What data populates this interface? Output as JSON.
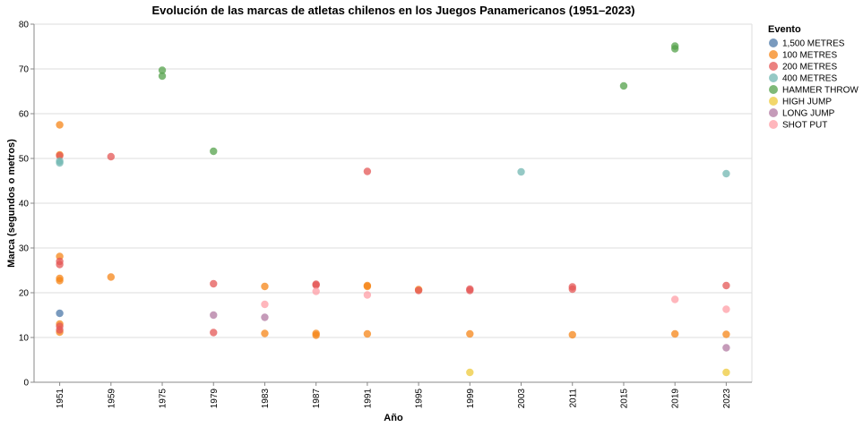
{
  "chart_data": {
    "type": "scatter",
    "title": "Evolución de las marcas de atletas chilenos en los Juegos Panamericanos (1951–2023)",
    "xlabel": "Año",
    "ylabel": "Marca (segundos o metros)",
    "ylim": [
      0,
      80
    ],
    "yticks": [
      0,
      10,
      20,
      30,
      40,
      50,
      60,
      70,
      80
    ],
    "categories": [
      "1951",
      "1959",
      "1975",
      "1979",
      "1983",
      "1987",
      "1991",
      "1995",
      "1999",
      "2003",
      "2011",
      "2015",
      "2019",
      "2023"
    ],
    "grid": true,
    "legend": {
      "title": "Evento",
      "placement": "right"
    },
    "series": [
      {
        "name": "1,500 METRES",
        "color": "#4c78a8",
        "points": [
          [
            "1951",
            15.4
          ]
        ]
      },
      {
        "name": "100 METRES",
        "color": "#f58518",
        "points": [
          [
            "1951",
            57.5
          ],
          [
            "1951",
            50.8
          ],
          [
            "1951",
            28.1
          ],
          [
            "1951",
            23.2
          ],
          [
            "1951",
            22.7
          ],
          [
            "1951",
            13.0
          ],
          [
            "1951",
            11.2
          ],
          [
            "1959",
            23.5
          ],
          [
            "1983",
            21.4
          ],
          [
            "1983",
            10.9
          ],
          [
            "1987",
            10.9
          ],
          [
            "1987",
            10.5
          ],
          [
            "1991",
            21.6
          ],
          [
            "1991",
            21.4
          ],
          [
            "1991",
            10.8
          ],
          [
            "1995",
            20.7
          ],
          [
            "1999",
            10.8
          ],
          [
            "2011",
            10.6
          ],
          [
            "2019",
            10.8
          ],
          [
            "2023",
            10.7
          ]
        ]
      },
      {
        "name": "200 METRES",
        "color": "#e45756",
        "points": [
          [
            "1951",
            50.6
          ],
          [
            "1951",
            27.0
          ],
          [
            "1951",
            26.3
          ],
          [
            "1951",
            12.5
          ],
          [
            "1951",
            11.7
          ],
          [
            "1959",
            50.4
          ],
          [
            "1979",
            22.0
          ],
          [
            "1979",
            11.1
          ],
          [
            "1987",
            21.9
          ],
          [
            "1987",
            21.7
          ],
          [
            "1991",
            47.1
          ],
          [
            "1995",
            20.5
          ],
          [
            "1999",
            20.8
          ],
          [
            "1999",
            20.5
          ],
          [
            "2011",
            21.3
          ],
          [
            "2011",
            20.8
          ],
          [
            "2023",
            21.6
          ]
        ]
      },
      {
        "name": "400 METRES",
        "color": "#72b7b2",
        "points": [
          [
            "1951",
            49.4
          ],
          [
            "1951",
            49.0
          ],
          [
            "2003",
            47.0
          ],
          [
            "2023",
            46.6
          ]
        ]
      },
      {
        "name": "HAMMER THROW",
        "color": "#54a24b",
        "points": [
          [
            "1975",
            69.7
          ],
          [
            "1975",
            68.4
          ],
          [
            "1979",
            51.6
          ],
          [
            "2015",
            66.2
          ],
          [
            "2019",
            75.1
          ],
          [
            "2019",
            74.5
          ]
        ]
      },
      {
        "name": "HIGH JUMP",
        "color": "#eeca3b",
        "points": [
          [
            "1999",
            2.2
          ],
          [
            "2023",
            2.2
          ]
        ]
      },
      {
        "name": "LONG JUMP",
        "color": "#b279a2",
        "points": [
          [
            "1979",
            15.0
          ],
          [
            "1983",
            14.5
          ],
          [
            "2023",
            7.7
          ]
        ]
      },
      {
        "name": "SHOT PUT",
        "color": "#ff9da6",
        "points": [
          [
            "1983",
            17.4
          ],
          [
            "1987",
            20.3
          ],
          [
            "1991",
            19.5
          ],
          [
            "2019",
            18.5
          ],
          [
            "2023",
            16.3
          ]
        ]
      }
    ]
  }
}
